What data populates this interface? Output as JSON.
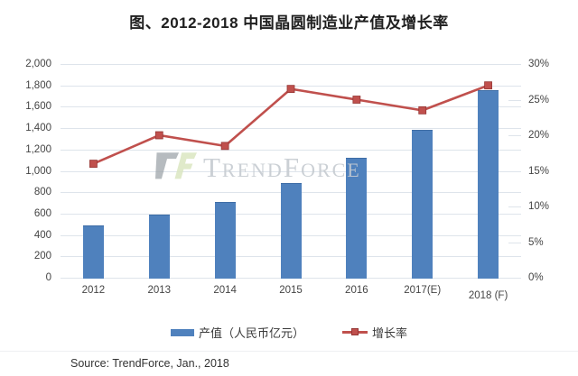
{
  "title": "图、2012-2018 中国晶圆制造业产值及增长率",
  "watermark": {
    "text": "TrendForce"
  },
  "legend": {
    "bar_label": "产值（人民币亿元）",
    "line_label": "增长率"
  },
  "source": "Source: TrendForce, Jan., 2018",
  "colors": {
    "bar": "#4f81bd",
    "line": "#c0504d",
    "marker_stroke": "#953735",
    "grid": "#dee4eb",
    "axis_text": "#444444",
    "watermark": "#c6cbd1"
  },
  "chart_data": {
    "type": "bar",
    "title": "图、2012-2018 中国晶圆制造业产值及增长率",
    "categories": [
      "2012",
      "2013",
      "2014",
      "2015",
      "2016",
      "2017(E)",
      "2018 (F)"
    ],
    "series": [
      {
        "name": "产值（人民币亿元）",
        "type": "bar",
        "axis": "left",
        "values": [
          490,
          590,
          710,
          890,
          1120,
          1380,
          1755
        ]
      },
      {
        "name": "增长率",
        "type": "line",
        "axis": "right",
        "values": [
          16,
          20,
          18.5,
          26.5,
          25,
          23.5,
          27
        ]
      }
    ],
    "left_axis": {
      "min": 0,
      "max": 2000,
      "step": 200,
      "tick_labels": [
        "2,000",
        "1,800",
        "1,600",
        "1,400",
        "1,200",
        "1,000",
        "800",
        "600",
        "400",
        "200",
        "0"
      ]
    },
    "right_axis": {
      "min": 0,
      "max": 30,
      "step": 5,
      "unit": "%",
      "tick_labels": [
        "30%",
        "25%",
        "20%",
        "15%",
        "10%",
        "5%",
        "0%"
      ]
    },
    "grid": "horizontal",
    "legend_position": "bottom",
    "source": "Source: TrendForce, Jan., 2018"
  }
}
